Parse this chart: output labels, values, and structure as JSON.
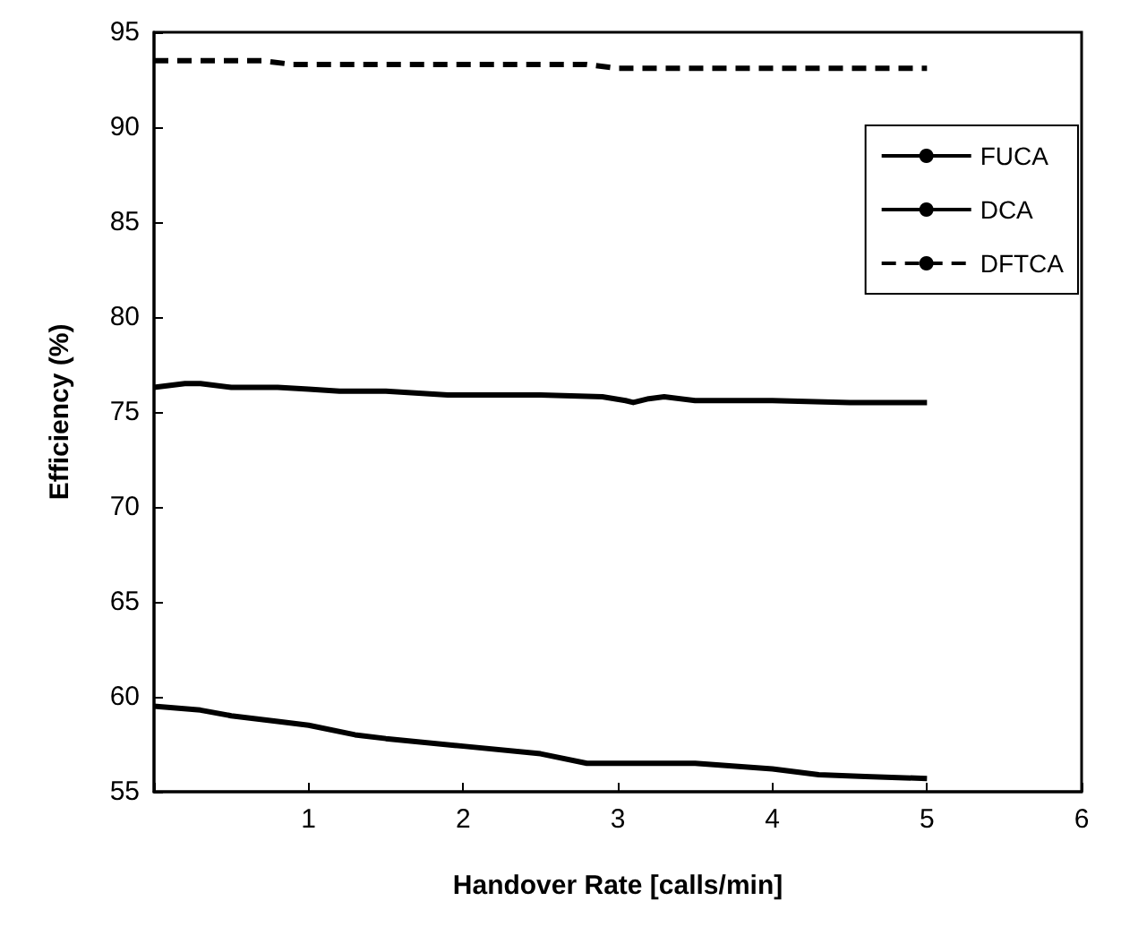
{
  "chart_data": {
    "type": "line",
    "xlabel": "Handover Rate [calls/min]",
    "ylabel": "Efficiency (%)",
    "xlim": [
      0,
      6
    ],
    "xticks": [
      {
        "value": 0,
        "label": null
      },
      1,
      2,
      3,
      4,
      5,
      6
    ],
    "ylim": [
      55,
      95
    ],
    "yticks": [
      55,
      60,
      65,
      70,
      75,
      80,
      85,
      90,
      95
    ],
    "grid": false,
    "legend": "top right",
    "marker": "none",
    "series": [
      {
        "name": "FUCA",
        "color": "#000000",
        "line_style": "solid",
        "x": [
          0,
          0.3,
          0.5,
          0.8,
          1,
          1.3,
          1.5,
          2,
          2.5,
          2.8,
          3.5,
          4,
          4.3,
          4.6,
          5
        ],
        "values": [
          59.5,
          59.3,
          59,
          58.7,
          58.5,
          58,
          57.8,
          57.4,
          57,
          56.5,
          56.5,
          56.2,
          55.9,
          55.8,
          55.7
        ]
      },
      {
        "name": "DCA",
        "color": "#000000",
        "line_style": "solid",
        "x": [
          0,
          0.2,
          0.3,
          0.5,
          0.8,
          1,
          1.2,
          1.5,
          1.9,
          2.5,
          2.9,
          3.05,
          3.1,
          3.2,
          3.3,
          3.5,
          4,
          4.5,
          5
        ],
        "values": [
          76.3,
          76.5,
          76.5,
          76.3,
          76.3,
          76.2,
          76.1,
          76.1,
          75.9,
          75.9,
          75.8,
          75.6,
          75.5,
          75.7,
          75.8,
          75.6,
          75.6,
          75.5,
          75.5
        ]
      },
      {
        "name": "DFTCA",
        "color": "#000000",
        "line_style": "dashed",
        "x": [
          0,
          0.7,
          0.9,
          2.8,
          3.0,
          5
        ],
        "values": [
          93.5,
          93.5,
          93.3,
          93.3,
          93.1,
          93.1
        ]
      }
    ]
  }
}
